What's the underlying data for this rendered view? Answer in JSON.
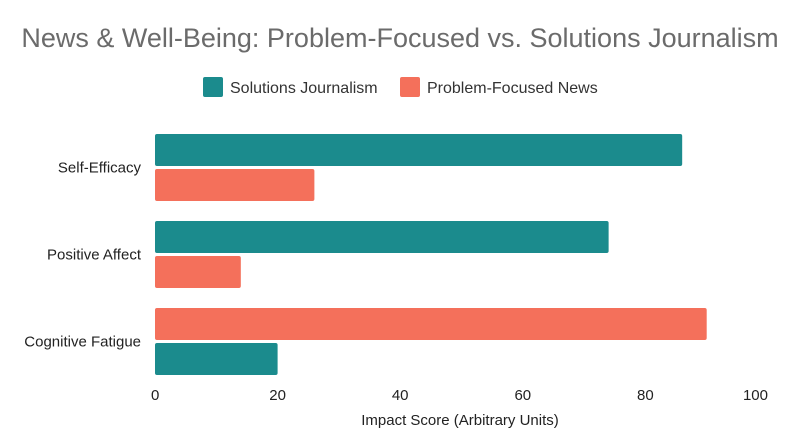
{
  "chart_data": {
    "type": "bar",
    "orientation": "horizontal",
    "title": "News & Well-Being: Problem-Focused vs. Solutions Journalism",
    "xlabel": "Impact Score (Arbitrary Units)",
    "ylabel": "",
    "categories": [
      "Self-Efficacy",
      "Positive Affect",
      "Cognitive Fatigue"
    ],
    "xlim": [
      0,
      100
    ],
    "xticks": [
      "0",
      "20",
      "40",
      "60",
      "80",
      "100"
    ],
    "grid": false,
    "legend_position": "top-center",
    "series": [
      {
        "name": "Solutions Journalism",
        "color": "#1b8b8d",
        "values": [
          86,
          74,
          20
        ]
      },
      {
        "name": "Problem-Focused News",
        "color": "#f4705b",
        "values": [
          26,
          14,
          90
        ]
      }
    ],
    "bar_order_per_category": [
      [
        "Solutions Journalism",
        "Problem-Focused News"
      ],
      [
        "Solutions Journalism",
        "Problem-Focused News"
      ],
      [
        "Problem-Focused News",
        "Solutions Journalism"
      ]
    ]
  }
}
